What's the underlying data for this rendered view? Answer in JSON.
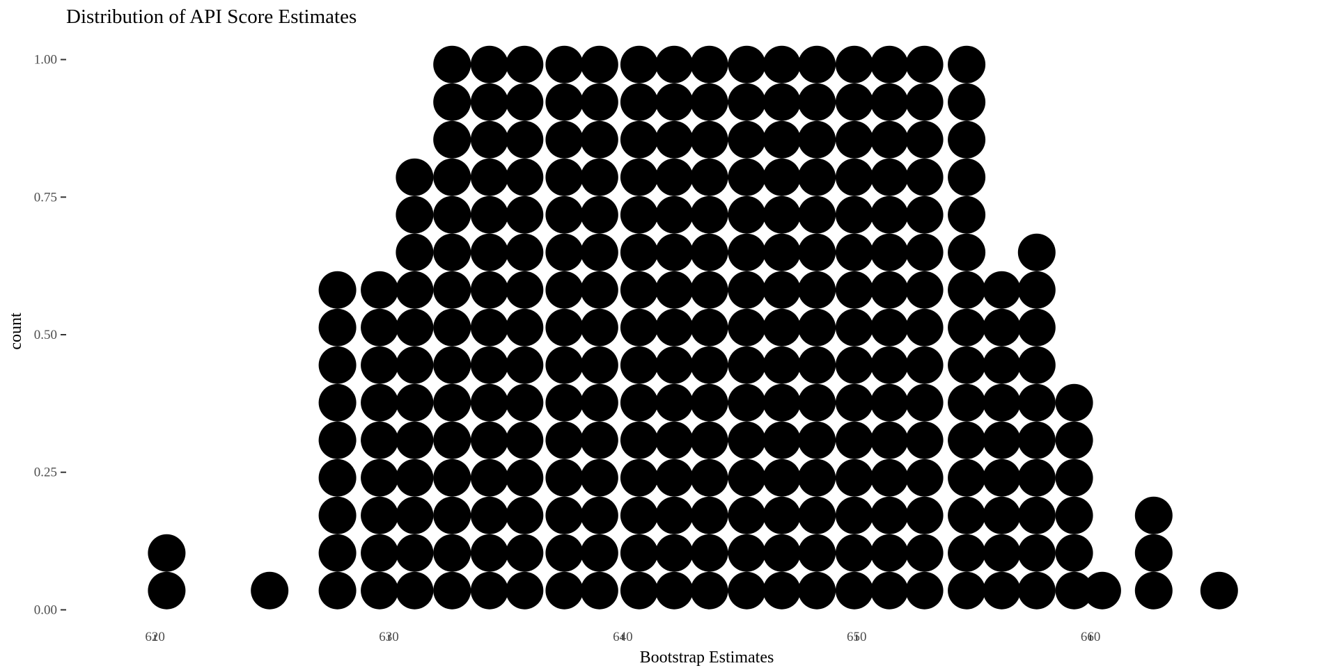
{
  "chart_data": {
    "type": "dotplot",
    "title": "Distribution of API Score Estimates",
    "xlabel": "Bootstrap Estimates",
    "ylabel": "count",
    "xlim": [
      616.2,
      668.9
    ],
    "ylim": [
      -0.045,
      1.045
    ],
    "x_ticks": [
      620,
      630,
      640,
      650,
      660
    ],
    "x_tick_labels": [
      "620",
      "630",
      "640",
      "650",
      "660"
    ],
    "y_ticks": [
      0,
      0.25,
      0.5,
      0.75,
      1.0
    ],
    "y_tick_labels": [
      "0.00",
      "0.25",
      "0.50",
      "0.75",
      "1.00"
    ],
    "grid": false,
    "dot_color": "#000000",
    "stacks": [
      {
        "x": 620.5,
        "count": 2
      },
      {
        "x": 624.9,
        "count": 1
      },
      {
        "x": 627.8,
        "count": 9
      },
      {
        "x": 629.6,
        "count": 9
      },
      {
        "x": 631.1,
        "count": 12
      },
      {
        "x": 632.7,
        "count": 15
      },
      {
        "x": 634.3,
        "count": 15
      },
      {
        "x": 635.8,
        "count": 15
      },
      {
        "x": 637.5,
        "count": 15
      },
      {
        "x": 639.0,
        "count": 15
      },
      {
        "x": 640.7,
        "count": 15
      },
      {
        "x": 642.2,
        "count": 15
      },
      {
        "x": 643.7,
        "count": 15
      },
      {
        "x": 645.3,
        "count": 15
      },
      {
        "x": 646.8,
        "count": 15
      },
      {
        "x": 648.3,
        "count": 15
      },
      {
        "x": 649.9,
        "count": 15
      },
      {
        "x": 651.4,
        "count": 15
      },
      {
        "x": 652.9,
        "count": 15
      },
      {
        "x": 654.7,
        "count": 15
      },
      {
        "x": 656.2,
        "count": 9
      },
      {
        "x": 657.7,
        "count": 10
      },
      {
        "x": 659.3,
        "count": 6
      },
      {
        "x": 660.5,
        "count": 1
      },
      {
        "x": 662.7,
        "count": 3
      },
      {
        "x": 665.5,
        "count": 1
      }
    ]
  }
}
